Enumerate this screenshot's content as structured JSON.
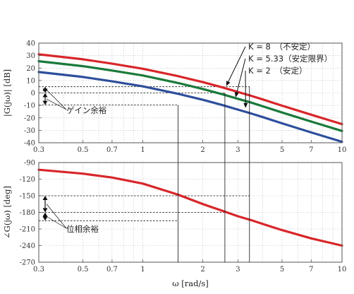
{
  "chart_data": [
    {
      "type": "line",
      "xlabel": "",
      "ylabel": "|G(jω)| [dB]",
      "xscale": "log",
      "xlim": [
        0.3,
        10
      ],
      "ylim": [
        -40,
        40
      ],
      "yticks": [
        40,
        30,
        20,
        10,
        0,
        -10,
        -20,
        -30,
        -40
      ],
      "xticks": [
        0.3,
        0.5,
        0.7,
        1,
        2,
        3,
        5,
        7,
        10
      ],
      "xtick_labels": [
        "0.3",
        "0.5",
        "0.7",
        "1",
        "2",
        "3",
        "5",
        "7",
        "10"
      ],
      "grid": true,
      "series": [
        {
          "name": "K = 8　（不安定）",
          "color": "#d8262a",
          "x": [
            0.3,
            0.5,
            0.7,
            1,
            1.5,
            2,
            2.5,
            3,
            3.5,
            4,
            5,
            7,
            10
          ],
          "y": [
            31,
            27,
            23.5,
            19.4,
            13.5,
            8.7,
            4.5,
            0.8,
            -2.3,
            -5.2,
            -10.2,
            -17.5,
            -25
          ]
        },
        {
          "name": "K = 5.33（安定限界）",
          "color": "#1a7a3a",
          "x": [
            0.3,
            0.5,
            0.7,
            1,
            1.5,
            2,
            2.5,
            3,
            3.5,
            4,
            5,
            7,
            10
          ],
          "y": [
            25.5,
            21.5,
            18,
            14,
            8,
            3.2,
            -1,
            -4.7,
            -7.8,
            -10.7,
            -15.7,
            -23,
            -30.5
          ]
        },
        {
          "name": "K = 2　（安定）",
          "color": "#2e4e9c",
          "x": [
            0.3,
            0.5,
            0.7,
            1,
            1.5,
            2,
            2.5,
            3,
            3.5,
            4,
            5,
            7,
            10
          ],
          "y": [
            16.8,
            12.8,
            9.3,
            5.3,
            -0.7,
            -5.5,
            -9.7,
            -13.4,
            -16.5,
            -19.4,
            -24.4,
            -31.7,
            -39.2
          ]
        }
      ],
      "annotations": {
        "legend_labels": [
          "K = 8　（不安定）",
          "K = 5.33（安定限界）",
          "K = 2　（安定）"
        ],
        "gain_margin_label": "ゲイン余裕",
        "ref_levels_db": [
          5,
          0,
          -9.7
        ]
      }
    },
    {
      "type": "line",
      "xlabel": "ω  [rad/s]",
      "ylabel": "∠G(jω) [deg]",
      "xscale": "log",
      "xlim": [
        0.3,
        10
      ],
      "ylim": [
        -270,
        -90
      ],
      "yticks": [
        -90,
        -120,
        -150,
        -180,
        -210,
        -240,
        -270
      ],
      "xticks": [
        0.3,
        0.5,
        0.7,
        1,
        2,
        3,
        5,
        7,
        10
      ],
      "xtick_labels": [
        "0.3",
        "0.5",
        "0.7",
        "1",
        "2",
        "3",
        "5",
        "7",
        "10"
      ],
      "grid": true,
      "series": [
        {
          "color": "#d8262a",
          "x": [
            0.3,
            0.5,
            0.7,
            1,
            1.5,
            2,
            2.5,
            3,
            3.5,
            4,
            5,
            7,
            10
          ],
          "y": [
            -103,
            -110,
            -117,
            -128,
            -148,
            -165,
            -177,
            -187,
            -194,
            -201,
            -212,
            -227,
            -240
          ]
        }
      ],
      "annotations": {
        "phase_margin_label": "位相余裕",
        "ref_levels_deg": [
          -150,
          -180,
          -195
        ]
      }
    }
  ],
  "crossover_lines_x": [
    1.5,
    2.58,
    3.43
  ]
}
